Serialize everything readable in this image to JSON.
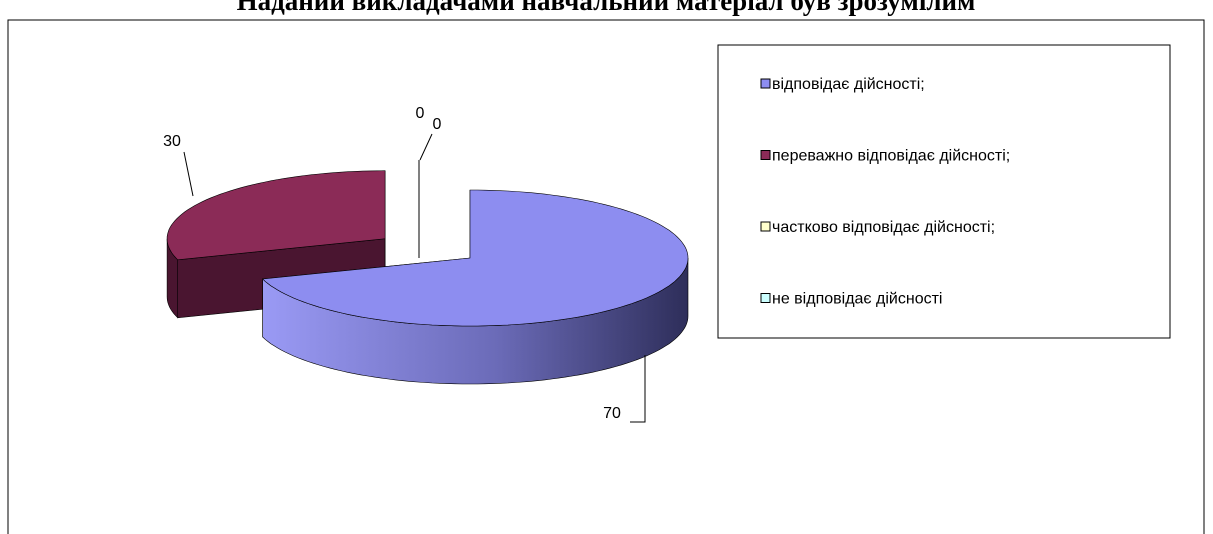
{
  "chart_data": {
    "type": "pie",
    "title": "Наданий викладачами навчальний матеріал був зрозумілим",
    "categories": [
      "відповідає дійсності;",
      "переважно  відповідає дійсності;",
      "частково  відповідає дійсності;",
      "не відповідає дійсності"
    ],
    "values": [
      70,
      30,
      0,
      0
    ],
    "colors": [
      "#8d8df0",
      "#8b2b57",
      "#ffffcc",
      "#ccffff"
    ]
  }
}
